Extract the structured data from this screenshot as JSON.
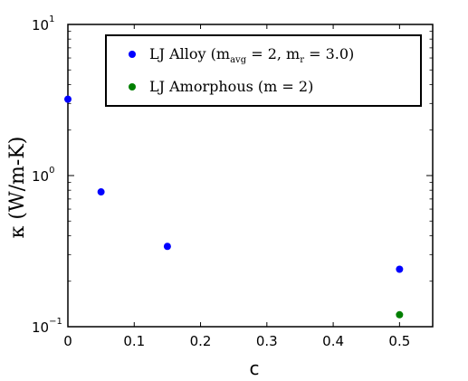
{
  "chart_data": {
    "type": "scatter",
    "xlabel": "c",
    "ylabel": "κ (W/m-K)",
    "xlim": [
      0,
      0.55
    ],
    "ylim": [
      0.1,
      10
    ],
    "yscale": "log",
    "grid": false,
    "legend_position": "top-right",
    "x_ticks": [
      "0",
      "0.1",
      "0.2",
      "0.3",
      "0.4",
      "0.5"
    ],
    "y_tick_base": "10",
    "y_tick_exponents": [
      "−1",
      "0",
      "1"
    ],
    "series": [
      {
        "name": "LJ Alloy (m_avg = 2, m_r = 3.0)",
        "legend_label": "LJ Alloy (m",
        "legend_sub1": "avg",
        "legend_mid": " = 2, m",
        "legend_sub2": "r",
        "legend_end": " = 3.0)",
        "color": "#0000ff",
        "points": [
          {
            "x": 0.0,
            "y": 3.2
          },
          {
            "x": 0.05,
            "y": 0.78
          },
          {
            "x": 0.15,
            "y": 0.34
          },
          {
            "x": 0.5,
            "y": 0.24
          }
        ]
      },
      {
        "name": "LJ Amorphous (m = 2)",
        "legend_label": "LJ Amorphous (m = 2)",
        "color": "#007f00",
        "points": [
          {
            "x": 0.5,
            "y": 0.12
          }
        ]
      }
    ]
  }
}
